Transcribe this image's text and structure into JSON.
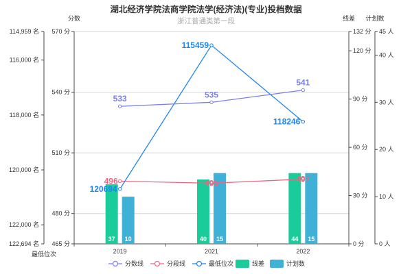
{
  "chart_data": {
    "type": "bar",
    "title": "湖北经济学院法商学院法学(经济法)(专业)投档数据",
    "subtitle": "浙江普通类第一段",
    "categories": [
      "2019",
      "2021",
      "2022"
    ],
    "axes": {
      "rank_axis": {
        "name": "",
        "bottom_name": "最低位次",
        "min": 114959,
        "max": 122694,
        "inverse": true,
        "ticks": [
          "114,959 名",
          "116,000 名",
          "118,000 名",
          "120,000 名",
          "122,000 名",
          "122,694 名"
        ]
      },
      "score_axis": {
        "name": "分数",
        "min": 465,
        "max": 570,
        "ticks": [
          "570 分",
          "540 分",
          "510 分",
          "480 分",
          "465 分"
        ]
      },
      "line_diff_axis": {
        "name": "线差",
        "min": 0,
        "max": 132,
        "ticks": [
          "132 分",
          "120 分",
          "90 分",
          "60 分",
          "30 分",
          "0 分"
        ]
      },
      "plan_axis": {
        "name": "计划数",
        "min": 0,
        "max": 45,
        "ticks": [
          "45 人",
          "40 人",
          "30 人",
          "20 人",
          "10 人",
          "0 人"
        ]
      }
    },
    "series": [
      {
        "name": "分数线",
        "kind": "line",
        "axis": "score",
        "color": "#7b7fe8",
        "values": [
          533,
          535,
          541
        ]
      },
      {
        "name": "分段线",
        "kind": "line",
        "axis": "score",
        "color": "#ee6680",
        "values": [
          496,
          495,
          497
        ]
      },
      {
        "name": "最低位次",
        "kind": "line",
        "axis": "rank",
        "color": "#1e86f0",
        "values": [
          120694,
          115459,
          118246
        ]
      },
      {
        "name": "线差",
        "kind": "bar",
        "axis": "line_diff",
        "color": "#19cc9a",
        "values": [
          37,
          40,
          44
        ]
      },
      {
        "name": "计划数",
        "kind": "bar",
        "axis": "plan",
        "color": "#3fb1d6",
        "values": [
          10,
          15,
          15
        ]
      }
    ],
    "grid": true,
    "legend_position": "bottom"
  }
}
